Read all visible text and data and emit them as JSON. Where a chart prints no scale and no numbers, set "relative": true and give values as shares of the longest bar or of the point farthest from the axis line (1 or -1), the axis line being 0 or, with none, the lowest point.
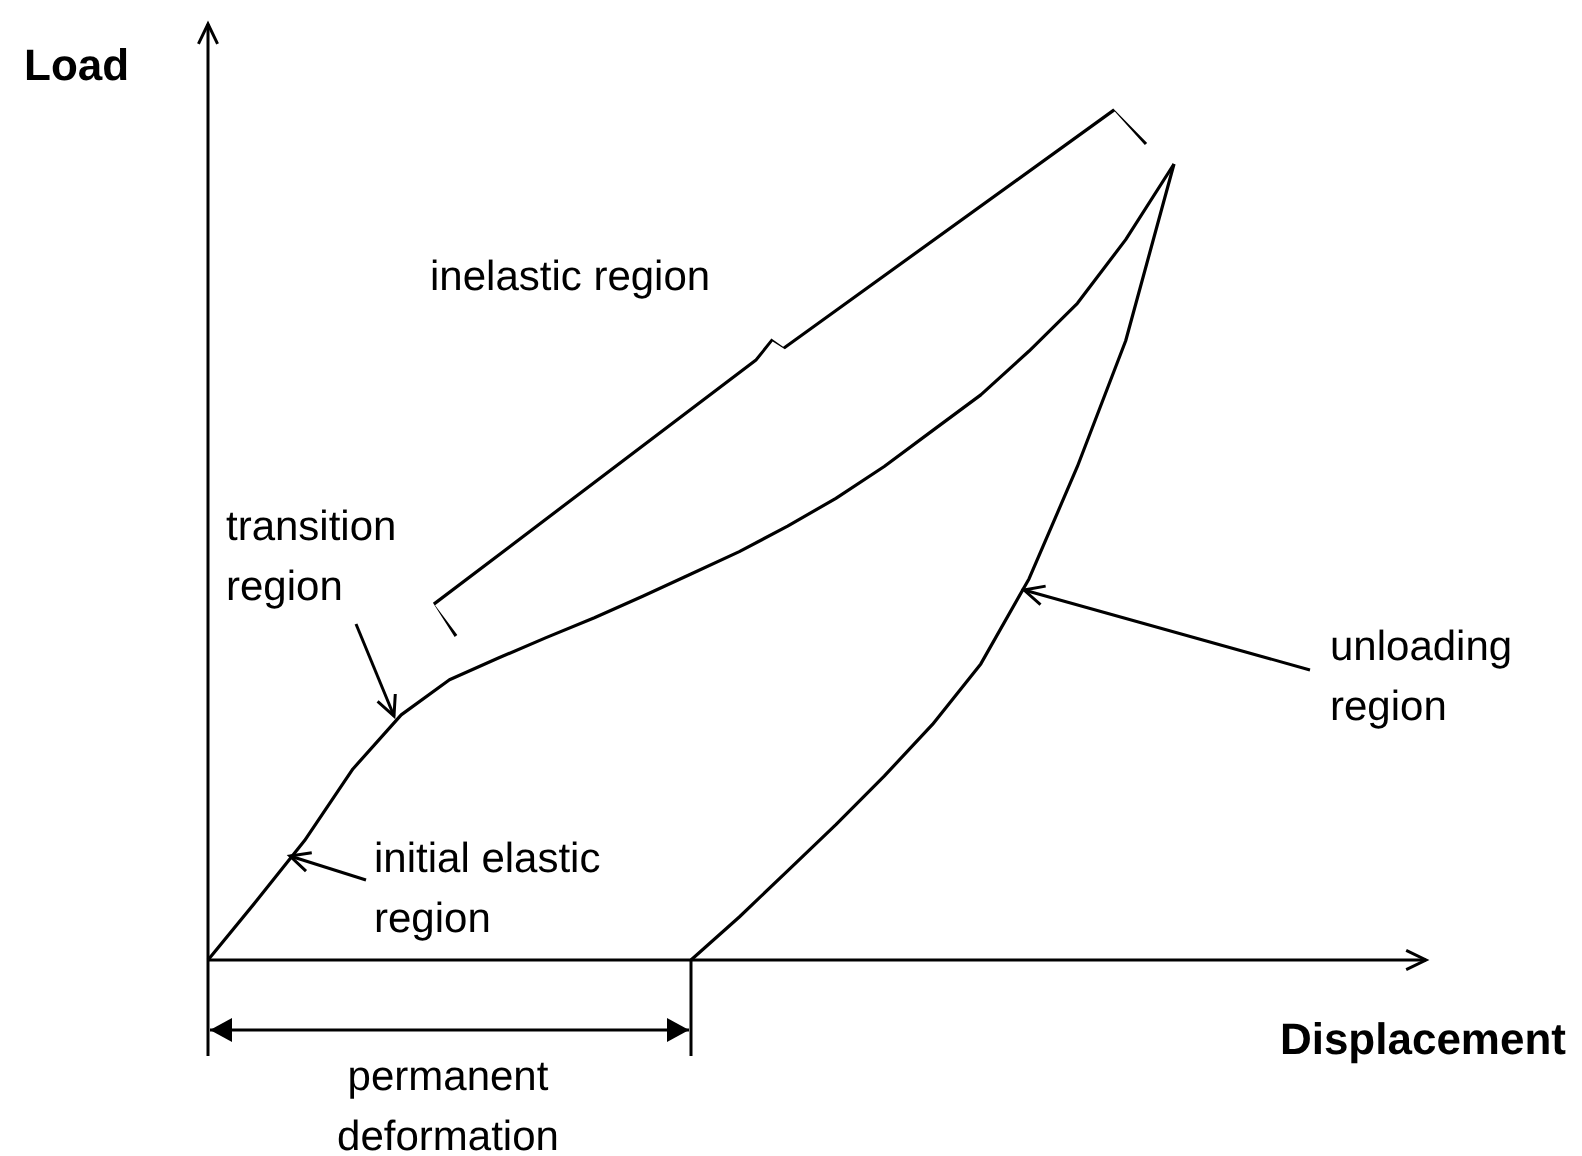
{
  "chart_data": {
    "type": "line",
    "relative": true,
    "xlabel": "Displacement",
    "ylabel": "Load",
    "marker": "none",
    "line_style": "solid",
    "categories": [
      null,
      null,
      null,
      null,
      null,
      null,
      null,
      null,
      null,
      null,
      null,
      null,
      null,
      null,
      null,
      null,
      null,
      null,
      null,
      null,
      null
    ],
    "series": [
      {
        "color": "#000000",
        "values": [
          0,
          0.074,
          0.15,
          0.24,
          0.308,
          0.352,
          0.379,
          0.405,
          0.43,
          0.457,
          0.485,
          0.513,
          0.545,
          0.58,
          0.62,
          0.665,
          0.71,
          0.765,
          0.825,
          0.905,
          1
        ]
      },
      {
        "color": "#000000",
        "values": [
          null,
          null,
          null,
          null,
          null,
          null,
          null,
          null,
          null,
          null,
          0,
          0.054,
          0.112,
          0.17,
          0.231,
          0.296,
          0.372,
          0.479,
          0.62,
          0.778,
          1
        ]
      }
    ],
    "annotations": [
      "inelastic region",
      "transition\nregion",
      "initial elastic\nregion",
      "unloading\nregion",
      "permanent\ndeformation"
    ]
  }
}
